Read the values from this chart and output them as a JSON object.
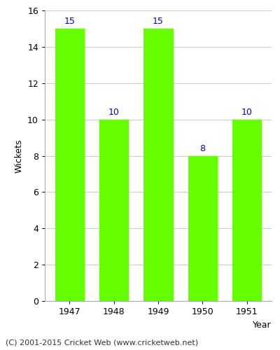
{
  "years": [
    "1947",
    "1948",
    "1949",
    "1950",
    "1951"
  ],
  "wickets": [
    15,
    10,
    15,
    8,
    10
  ],
  "bar_color": "#66ff00",
  "bar_edgecolor": "#66ff00",
  "label_color": "#0000cc",
  "xlabel": "Year",
  "ylabel": "Wickets",
  "ylim": [
    0,
    16
  ],
  "yticks": [
    0,
    2,
    4,
    6,
    8,
    10,
    12,
    14,
    16
  ],
  "grid_color": "#cccccc",
  "background_color": "#ffffff",
  "axes_background": "#ffffff",
  "footer": "(C) 2001-2015 Cricket Web (www.cricketweb.net)",
  "label_fontsize": 9,
  "axis_label_fontsize": 9,
  "tick_fontsize": 9,
  "footer_fontsize": 8,
  "bar_width": 0.65
}
